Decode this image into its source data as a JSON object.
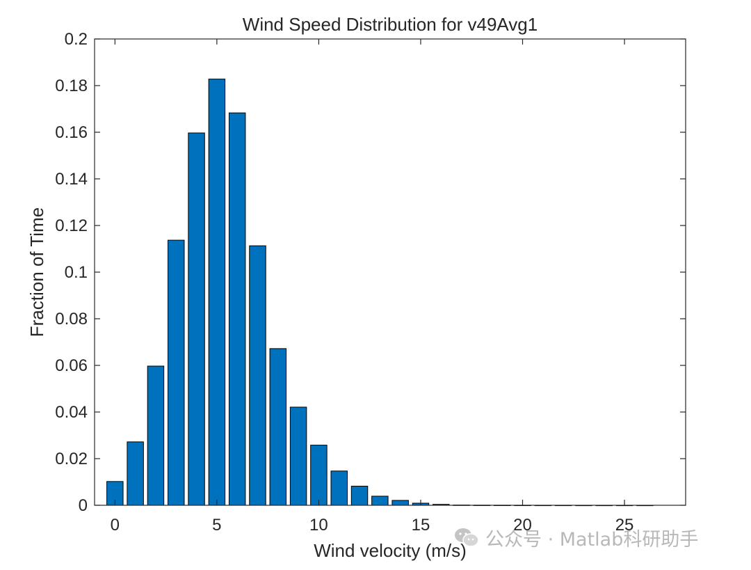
{
  "chart_data": {
    "type": "bar",
    "title": "Wind Speed Distribution for v49Avg1",
    "xlabel": "Wind velocity (m/s)",
    "ylabel": "Fraction of Time",
    "x": [
      0,
      1,
      2,
      3,
      4,
      5,
      6,
      7,
      8,
      9,
      10,
      11,
      12,
      13,
      14,
      15,
      16,
      17,
      18,
      19,
      20,
      21,
      22,
      23,
      24,
      25,
      26
    ],
    "values": [
      0.0102,
      0.0272,
      0.0597,
      0.1137,
      0.1597,
      0.1828,
      0.1683,
      0.1113,
      0.0672,
      0.0421,
      0.0258,
      0.0147,
      0.0082,
      0.0039,
      0.0021,
      0.0009,
      0.0004,
      0.0001,
      5e-05,
      3e-05,
      2e-05,
      1e-05,
      1e-05,
      0,
      0,
      0,
      0
    ],
    "xlim": [
      -1,
      28
    ],
    "ylim": [
      0,
      0.2
    ],
    "xticks": [
      0,
      5,
      10,
      15,
      20,
      25
    ],
    "xtick_labels": [
      "0",
      "5",
      "10",
      "15",
      "20",
      "25"
    ],
    "yticks": [
      0,
      0.02,
      0.04,
      0.06,
      0.08,
      0.1,
      0.12,
      0.14,
      0.16,
      0.18,
      0.2
    ],
    "ytick_labels": [
      "0",
      "0.02",
      "0.04",
      "0.06",
      "0.08",
      "0.1",
      "0.12",
      "0.14",
      "0.16",
      "0.18",
      "0.2"
    ],
    "bar_color": "#0072BD",
    "edge_color": "#000000",
    "grid": false,
    "legend": "none"
  },
  "watermark": {
    "text": "公众号 · Matlab科研助手",
    "icon": "wechat-icon"
  }
}
